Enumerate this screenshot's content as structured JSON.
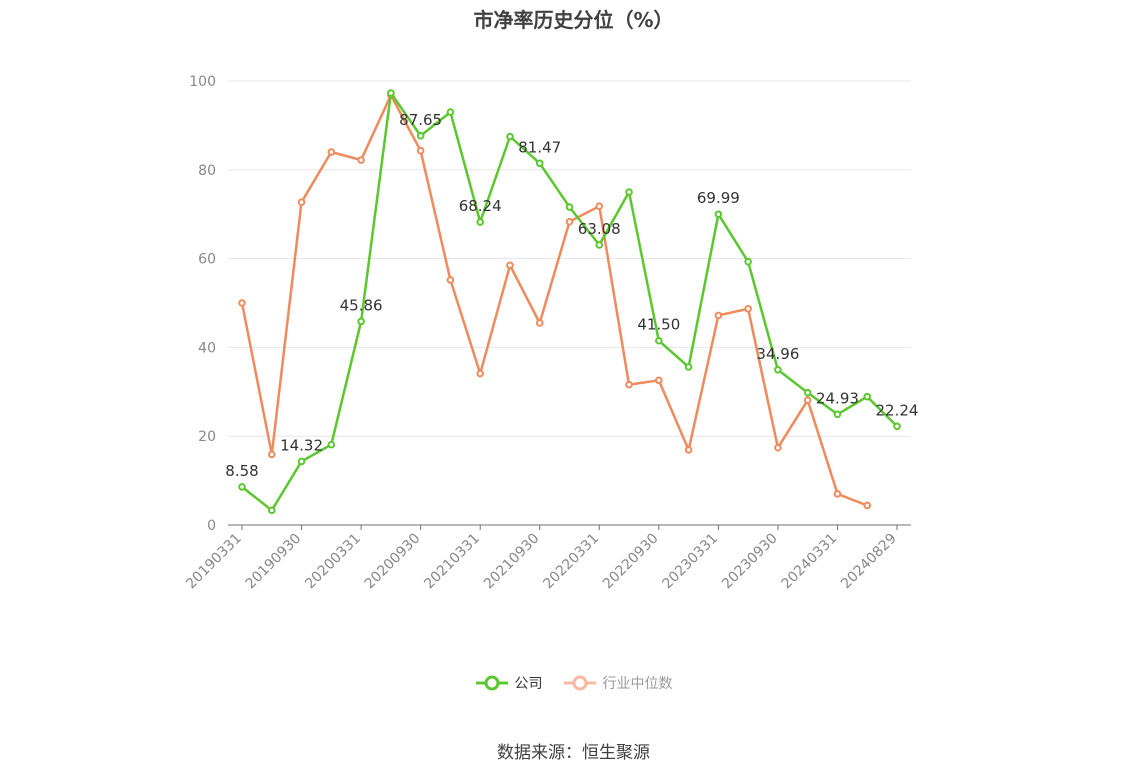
{
  "chart_data": {
    "type": "line",
    "title": "市净率历史分位（%）",
    "source": "数据来源：恒生聚源",
    "ylim": [
      0,
      100
    ],
    "yticks": [
      0,
      20,
      40,
      60,
      80,
      100
    ],
    "x_tick_labels": [
      "20190331",
      "20190930",
      "20200331",
      "20200930",
      "20210331",
      "20210930",
      "20220331",
      "20220930",
      "20230331",
      "20230930",
      "20240331",
      "20240829"
    ],
    "x": [
      "20190331",
      "20190630",
      "20190930",
      "20191231",
      "20200331",
      "20200630",
      "20200930",
      "20201231",
      "20210331",
      "20210630",
      "20210930",
      "20211231",
      "20220331",
      "20220630",
      "20220930",
      "20221231",
      "20230331",
      "20230630",
      "20230930",
      "20231231",
      "20240331",
      "20240630",
      "20240829"
    ],
    "grid": true,
    "legend_position": "bottom",
    "series": [
      {
        "name": "公司",
        "color": "#5ac72f",
        "values": [
          8.58,
          3.3,
          14.32,
          18.1,
          45.86,
          97.3,
          87.65,
          93.0,
          68.24,
          87.5,
          81.47,
          71.6,
          63.08,
          75.0,
          41.5,
          35.6,
          69.99,
          59.3,
          34.96,
          29.8,
          24.93,
          28.9,
          22.24
        ],
        "labels": {
          "0": "8.58",
          "2": "14.32",
          "4": "45.86",
          "6": "87.65",
          "8": "68.24",
          "10": "81.47",
          "12": "63.08",
          "14": "41.50",
          "16": "69.99",
          "18": "34.96",
          "20": "24.93",
          "22": "22.24"
        }
      },
      {
        "name": "行业中位数",
        "color": "#f08a5d",
        "values": [
          50.0,
          15.9,
          72.7,
          84.0,
          82.2,
          96.8,
          84.3,
          55.2,
          34.1,
          58.5,
          45.5,
          68.3,
          71.8,
          31.6,
          32.6,
          16.9,
          47.2,
          48.7,
          17.4,
          28.1,
          7.0,
          4.4,
          null
        ]
      }
    ]
  },
  "legend": {
    "company_label": "公司",
    "industry_label": "行业中位数",
    "industry_icon_color": "#f9b9a0"
  }
}
